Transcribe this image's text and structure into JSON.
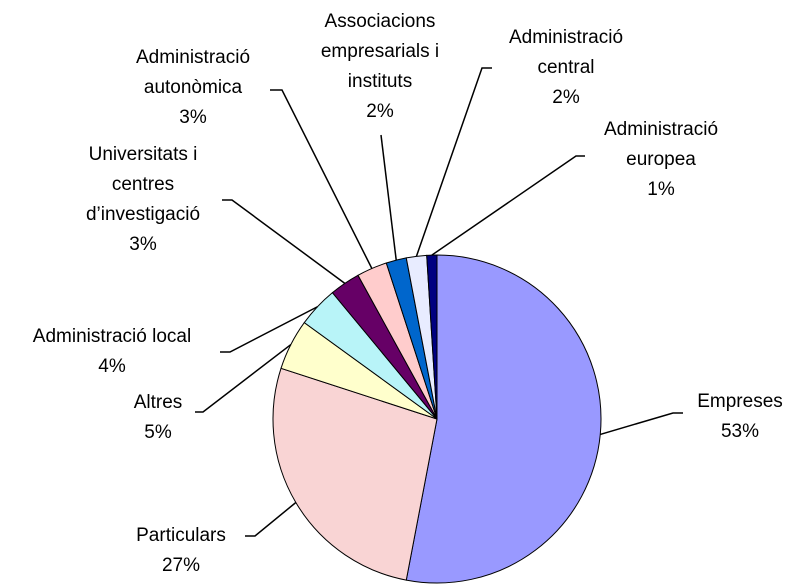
{
  "chart_data": {
    "type": "pie",
    "categories": [
      "Empreses",
      "Particulars",
      "Altres",
      "Administració local",
      "Universitats i\ncentres\nd’investigació",
      "Administració\nautonòmica",
      "Associacions\nempresarials i\ninstituts",
      "Administració\ncentral",
      "Administració\neuropea"
    ],
    "values": [
      53,
      27,
      5,
      4,
      3,
      3,
      2,
      2,
      1
    ],
    "value_labels": [
      "53%",
      "27%",
      "5%",
      "4%",
      "3%",
      "3%",
      "2%",
      "2%",
      "1%"
    ],
    "colors": [
      "#9999ff",
      "#f9d4d4",
      "#ffffcc",
      "#b8f4f8",
      "#660066",
      "#ffcccc",
      "#0066cc",
      "#e8ecff",
      "#000080"
    ]
  }
}
